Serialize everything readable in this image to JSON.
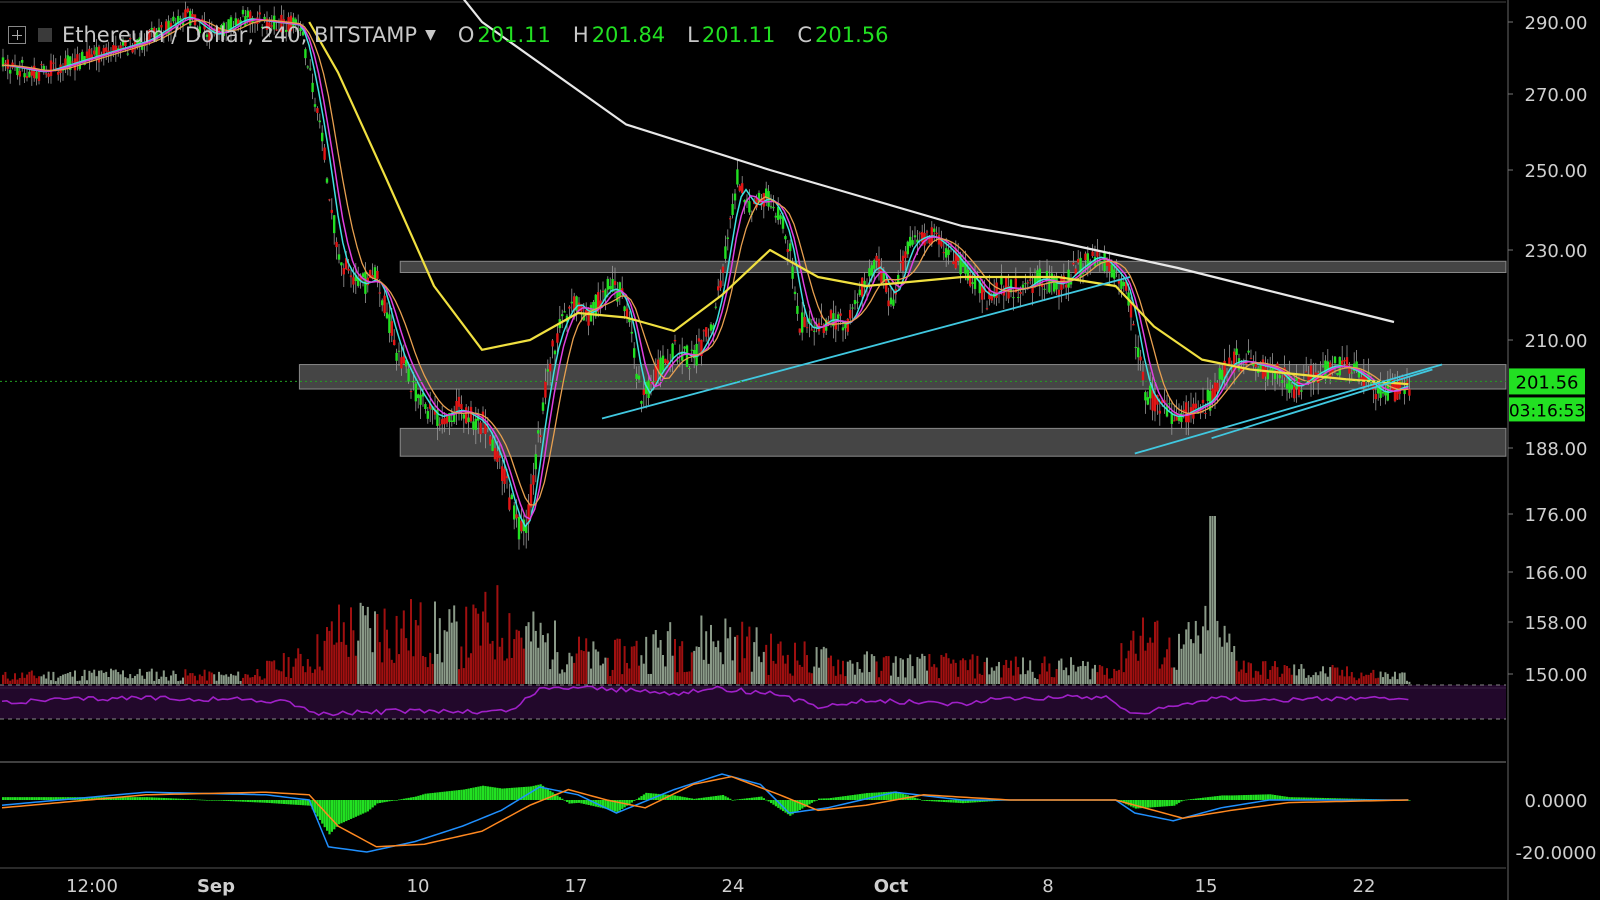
{
  "header": {
    "symbol": "Ethereum / Dollar, 240, BITSTAMP",
    "open_label": "O",
    "open": "201.11",
    "high_label": "H",
    "high": "201.84",
    "low_label": "L",
    "low": "201.11",
    "close_label": "C",
    "close": "201.56"
  },
  "price_badge": "201.56",
  "countdown_badge": "03:16:53",
  "colors": {
    "background": "#000000",
    "up": "#22e022",
    "down": "#e21515",
    "sma_white": "#e8e8e8",
    "ema_yellow": "#f0e040",
    "ema_orange": "#e8a050",
    "ema_magenta": "#e040e0",
    "ema_cyan": "#40e0e0",
    "trendline": "#40c8e0",
    "zone": "#8a8a8a",
    "rsi": "#a020c8",
    "macd_hist": "#22e022",
    "macd_line": "#2090ff",
    "signal_line": "#ff8820"
  },
  "chart_data": {
    "type": "candlestick",
    "y_ticks": [
      "290.00",
      "270.00",
      "250.00",
      "230.00",
      "210.00",
      "188.00",
      "176.00",
      "166.00",
      "158.00",
      "150.00"
    ],
    "x_ticks": [
      "12:00",
      "Sep",
      "10",
      "17",
      "24",
      "Oct",
      "8",
      "15",
      "22"
    ],
    "macd_ticks": [
      "0.0000",
      "-20.0000"
    ],
    "price_path": [
      [
        0,
        278
      ],
      [
        8,
        276
      ],
      [
        20,
        281
      ],
      [
        30,
        285
      ],
      [
        38,
        292
      ],
      [
        44,
        286
      ],
      [
        50,
        291
      ],
      [
        56,
        290
      ],
      [
        62,
        289
      ],
      [
        66,
        262
      ],
      [
        70,
        228
      ],
      [
        74,
        222
      ],
      [
        78,
        224
      ],
      [
        82,
        208
      ],
      [
        86,
        200
      ],
      [
        90,
        194
      ],
      [
        95,
        196
      ],
      [
        100,
        193
      ],
      [
        104,
        184
      ],
      [
        107,
        174
      ],
      [
        109,
        173
      ],
      [
        111,
        186
      ],
      [
        114,
        206
      ],
      [
        116,
        213
      ],
      [
        119,
        219
      ],
      [
        122,
        215
      ],
      [
        126,
        222
      ],
      [
        129,
        220
      ],
      [
        131,
        211
      ],
      [
        133,
        197
      ],
      [
        136,
        203
      ],
      [
        140,
        208
      ],
      [
        144,
        206
      ],
      [
        148,
        214
      ],
      [
        151,
        232
      ],
      [
        153,
        248
      ],
      [
        156,
        240
      ],
      [
        159,
        244
      ],
      [
        162,
        238
      ],
      [
        164,
        230
      ],
      [
        166,
        214
      ],
      [
        169,
        212
      ],
      [
        172,
        215
      ],
      [
        176,
        213
      ],
      [
        179,
        222
      ],
      [
        182,
        228
      ],
      [
        185,
        218
      ],
      [
        189,
        232
      ],
      [
        193,
        234
      ],
      [
        197,
        230
      ],
      [
        201,
        225
      ],
      [
        205,
        219
      ],
      [
        208,
        222
      ],
      [
        212,
        221
      ],
      [
        216,
        224
      ],
      [
        220,
        222
      ],
      [
        224,
        226
      ],
      [
        228,
        229
      ],
      [
        231,
        226
      ],
      [
        234,
        222
      ],
      [
        236,
        210
      ],
      [
        238,
        200
      ],
      [
        241,
        196
      ],
      [
        244,
        194
      ],
      [
        248,
        196
      ],
      [
        252,
        198
      ],
      [
        254,
        204
      ],
      [
        257,
        206
      ],
      [
        261,
        205
      ],
      [
        265,
        204
      ],
      [
        269,
        200
      ],
      [
        273,
        203
      ],
      [
        277,
        205
      ],
      [
        281,
        204
      ],
      [
        285,
        201
      ],
      [
        287,
        199
      ],
      [
        290,
        200
      ],
      [
        293,
        201
      ]
    ],
    "volume_profile": [
      [
        0,
        3
      ],
      [
        25,
        4
      ],
      [
        50,
        3
      ],
      [
        64,
        10
      ],
      [
        70,
        20
      ],
      [
        80,
        22
      ],
      [
        96,
        18
      ],
      [
        104,
        25
      ],
      [
        110,
        18
      ],
      [
        125,
        9
      ],
      [
        135,
        14
      ],
      [
        150,
        18
      ],
      [
        160,
        12
      ],
      [
        175,
        8
      ],
      [
        200,
        7
      ],
      [
        232,
        6
      ],
      [
        236,
        20
      ],
      [
        244,
        12
      ],
      [
        252,
        20
      ],
      [
        260,
        6
      ],
      [
        293,
        3
      ]
    ],
    "volume_spike": [
      252,
      40
    ],
    "sma200_path": [
      [
        88,
        310
      ],
      [
        100,
        290
      ],
      [
        130,
        262
      ],
      [
        160,
        250
      ],
      [
        180,
        243
      ],
      [
        200,
        236
      ],
      [
        220,
        232
      ],
      [
        232,
        229
      ],
      [
        245,
        226
      ],
      [
        260,
        222
      ],
      [
        275,
        218
      ],
      [
        290,
        214
      ]
    ],
    "ema50_path": [
      [
        64,
        290
      ],
      [
        70,
        276
      ],
      [
        80,
        248
      ],
      [
        90,
        222
      ],
      [
        100,
        208
      ],
      [
        110,
        210
      ],
      [
        120,
        216
      ],
      [
        130,
        215
      ],
      [
        140,
        212
      ],
      [
        150,
        220
      ],
      [
        160,
        230
      ],
      [
        170,
        224
      ],
      [
        180,
        222
      ],
      [
        200,
        224
      ],
      [
        220,
        224
      ],
      [
        232,
        222
      ],
      [
        240,
        213
      ],
      [
        250,
        206
      ],
      [
        260,
        204
      ],
      [
        270,
        203
      ],
      [
        280,
        202
      ],
      [
        293,
        201
      ]
    ],
    "trendlines": [
      [
        [
          125,
          194
        ],
        [
          235,
          224
        ]
      ],
      [
        [
          236,
          187
        ],
        [
          300,
          205
        ]
      ],
      [
        [
          252,
          190
        ],
        [
          298,
          204
        ]
      ]
    ],
    "zones": [
      [
        109,
        186.5,
        192
      ],
      [
        88,
        200,
        205
      ],
      [
        109,
        225,
        227.5
      ]
    ],
    "rsi_range": [
      30,
      70
    ],
    "rsi_path": [
      [
        0,
        50
      ],
      [
        10,
        52
      ],
      [
        30,
        55
      ],
      [
        50,
        53
      ],
      [
        60,
        50
      ],
      [
        66,
        35
      ],
      [
        76,
        38
      ],
      [
        90,
        40
      ],
      [
        100,
        38
      ],
      [
        106,
        40
      ],
      [
        112,
        65
      ],
      [
        120,
        68
      ],
      [
        140,
        60
      ],
      [
        150,
        66
      ],
      [
        160,
        60
      ],
      [
        170,
        45
      ],
      [
        180,
        52
      ],
      [
        200,
        48
      ],
      [
        210,
        55
      ],
      [
        230,
        56
      ],
      [
        236,
        35
      ],
      [
        244,
        45
      ],
      [
        252,
        55
      ],
      [
        270,
        52
      ],
      [
        280,
        55
      ],
      [
        293,
        52
      ]
    ],
    "macd_path": [
      [
        0,
        -2
      ],
      [
        30,
        3
      ],
      [
        55,
        2
      ],
      [
        64,
        0
      ],
      [
        68,
        -18
      ],
      [
        76,
        -20
      ],
      [
        86,
        -16
      ],
      [
        96,
        -10
      ],
      [
        104,
        -4
      ],
      [
        112,
        5
      ],
      [
        120,
        2
      ],
      [
        128,
        -5
      ],
      [
        140,
        4
      ],
      [
        150,
        10
      ],
      [
        158,
        6
      ],
      [
        164,
        -5
      ],
      [
        172,
        -3
      ],
      [
        186,
        3
      ],
      [
        200,
        0
      ],
      [
        232,
        0
      ],
      [
        236,
        -5
      ],
      [
        244,
        -8
      ],
      [
        254,
        -3
      ],
      [
        264,
        0
      ],
      [
        293,
        0
      ]
    ],
    "signal_path": [
      [
        0,
        -3
      ],
      [
        30,
        2
      ],
      [
        55,
        3
      ],
      [
        64,
        2
      ],
      [
        70,
        -10
      ],
      [
        78,
        -18
      ],
      [
        88,
        -17
      ],
      [
        100,
        -12
      ],
      [
        110,
        -2
      ],
      [
        118,
        4
      ],
      [
        126,
        0
      ],
      [
        134,
        -3
      ],
      [
        144,
        6
      ],
      [
        152,
        9
      ],
      [
        162,
        2
      ],
      [
        170,
        -4
      ],
      [
        180,
        -2
      ],
      [
        192,
        2
      ],
      [
        210,
        0
      ],
      [
        232,
        0
      ],
      [
        238,
        -3
      ],
      [
        246,
        -7
      ],
      [
        256,
        -4
      ],
      [
        268,
        -1
      ],
      [
        293,
        0
      ]
    ]
  }
}
